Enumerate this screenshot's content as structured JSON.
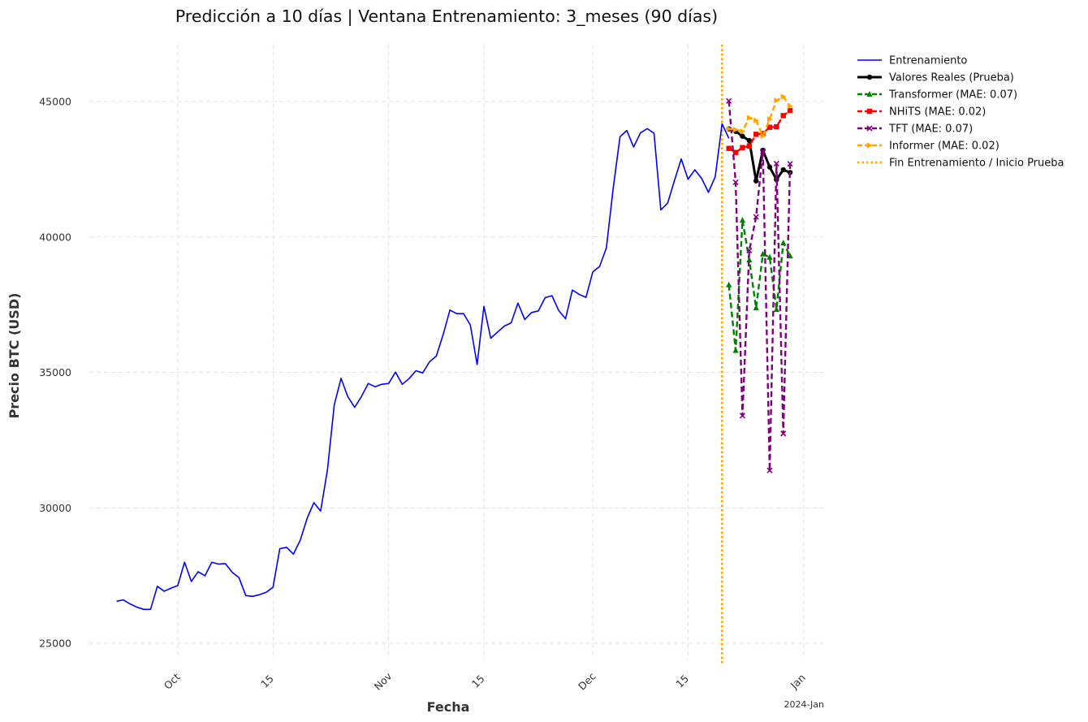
{
  "chart_data": {
    "type": "line",
    "title": "Predicción a 10 días | Ventana Entrenamiento: 3_meses (90 días)",
    "xlabel": "Fecha",
    "ylabel": "Precio BTC (USD)",
    "x_range": [
      "2023-09-18",
      "2024-01-04"
    ],
    "ylim": [
      24400,
      47100
    ],
    "x_offset_label": "2024-Jan",
    "x_ticks": [
      {
        "date": "2023-10-01",
        "label": "Oct"
      },
      {
        "date": "2023-10-15",
        "label": "15"
      },
      {
        "date": "2023-11-01",
        "label": "Nov"
      },
      {
        "date": "2023-11-15",
        "label": "15"
      },
      {
        "date": "2023-12-01",
        "label": "Dec"
      },
      {
        "date": "2023-12-15",
        "label": "15"
      },
      {
        "date": "2024-01-01",
        "label": "Jan"
      }
    ],
    "y_ticks": [
      {
        "value": 25000,
        "label": "25000"
      },
      {
        "value": 30000,
        "label": "30000"
      },
      {
        "value": 35000,
        "label": "35000"
      },
      {
        "value": 40000,
        "label": "40000"
      },
      {
        "value": 45000,
        "label": "45000"
      }
    ],
    "grid": true,
    "legend_position": "outside-top-right",
    "vline": {
      "date": "2023-12-20",
      "name": "Fin Entrenamiento / Inicio Prueba",
      "color": "#ffa500"
    },
    "series": [
      {
        "name": "Entrenamiento",
        "color": "#0000ff",
        "style": "solid",
        "marker": "none",
        "start_date": "2023-09-22",
        "values": [
          26550,
          26600,
          26450,
          26330,
          26250,
          26250,
          27100,
          26920,
          27030,
          27130,
          27990,
          27280,
          27640,
          27490,
          27990,
          27920,
          27940,
          27620,
          27420,
          26760,
          26730,
          26790,
          26880,
          27070,
          28490,
          28540,
          28290,
          28800,
          29600,
          30190,
          29880,
          31400,
          33800,
          34780,
          34100,
          33710,
          34110,
          34590,
          34470,
          34560,
          34590,
          35010,
          34560,
          34770,
          35060,
          34980,
          35390,
          35600,
          36390,
          37300,
          37170,
          37170,
          36750,
          35290,
          37440,
          36260,
          36490,
          36710,
          36830,
          37560,
          36950,
          37210,
          37270,
          37760,
          37830,
          37280,
          36980,
          38040,
          37880,
          37770,
          38710,
          38910,
          39600,
          41800,
          43700,
          43930,
          43320,
          43840,
          44000,
          43830,
          41000,
          41250,
          42080,
          42880,
          42130,
          42480,
          42160,
          41650,
          42230,
          44180,
          43640
        ]
      },
      {
        "name": "Valores Reales (Prueba)",
        "color": "#000000",
        "style": "solid-thick",
        "marker": "circle",
        "start_date": "2023-12-21",
        "values": [
          43990,
          43900,
          43720,
          43560,
          42070,
          43200,
          42580,
          42120,
          42480,
          42380
        ]
      },
      {
        "name": "Transformer (MAE: 0.07)",
        "color": "#008000",
        "style": "dashed",
        "marker": "triangle",
        "start_date": "2023-12-21",
        "values": [
          38230,
          35810,
          40620,
          39150,
          37380,
          39370,
          39250,
          37320,
          39780,
          39300
        ]
      },
      {
        "name": "NHiTS (MAE: 0.02)",
        "color": "#ff0000",
        "style": "dashed",
        "marker": "square",
        "start_date": "2023-12-21",
        "values": [
          43270,
          43120,
          43300,
          43360,
          43790,
          43820,
          44050,
          44070,
          44480,
          44670
        ]
      },
      {
        "name": "TFT (MAE: 0.07)",
        "color": "#800080",
        "style": "dashed",
        "marker": "x",
        "start_date": "2023-12-21",
        "values": [
          45020,
          42020,
          33400,
          39500,
          40740,
          43170,
          31380,
          42710,
          32740,
          42700
        ]
      },
      {
        "name": "Informer (MAE: 0.02)",
        "color": "#ffa500",
        "style": "dashed",
        "marker": "triangle-right",
        "start_date": "2023-12-21",
        "values": [
          43990,
          43960,
          43900,
          44400,
          44300,
          43730,
          44350,
          45040,
          45180,
          44830
        ]
      }
    ]
  }
}
